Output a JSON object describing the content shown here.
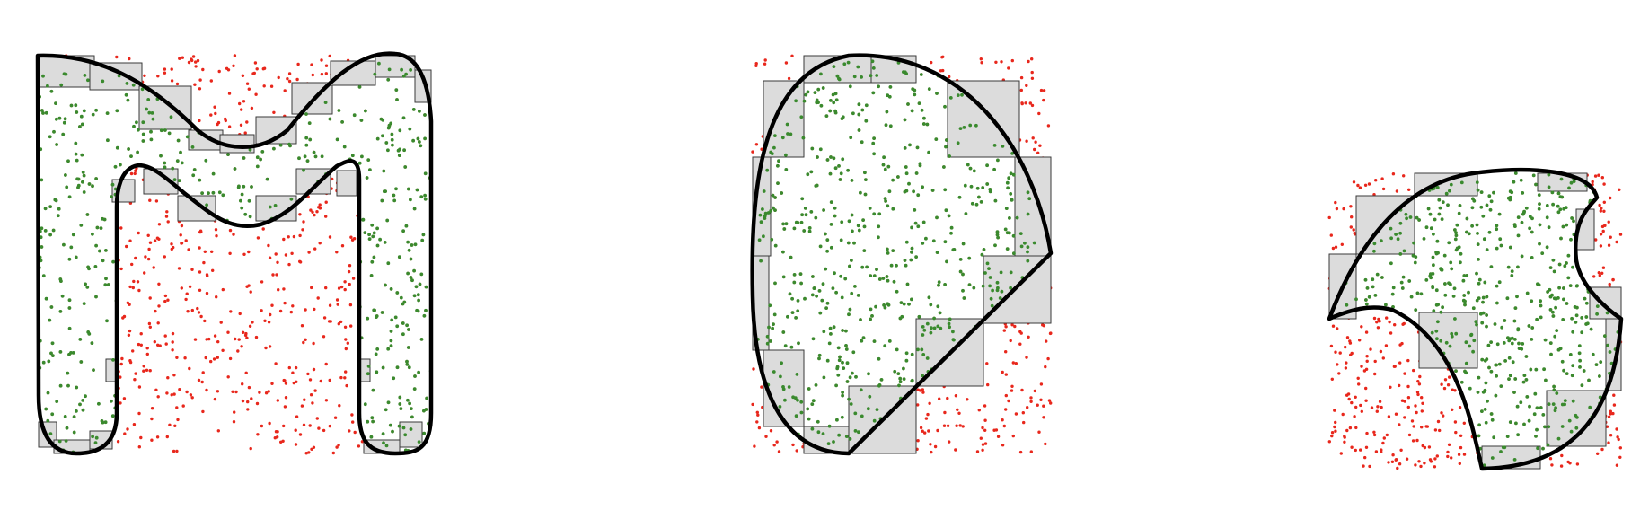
{
  "figure": {
    "panels": [
      {
        "id": "m-shape",
        "shape": "letter-m",
        "samples": {
          "inside_color": "#3a8a2e",
          "outside_color": "#e8271c",
          "count": 950
        }
      },
      {
        "id": "half-disc",
        "shape": "disc-sector",
        "samples": {
          "inside_color": "#3a8a2e",
          "outside_color": "#e8271c",
          "count": 800
        }
      },
      {
        "id": "crescent-blob",
        "shape": "concave-blob",
        "samples": {
          "inside_color": "#3a8a2e",
          "outside_color": "#e8271c",
          "count": 800
        }
      }
    ],
    "colors": {
      "boundary_cell_fill": "#dcdcdc",
      "boundary_cell_stroke": "#3a3a3a",
      "outline": "#000000"
    }
  }
}
